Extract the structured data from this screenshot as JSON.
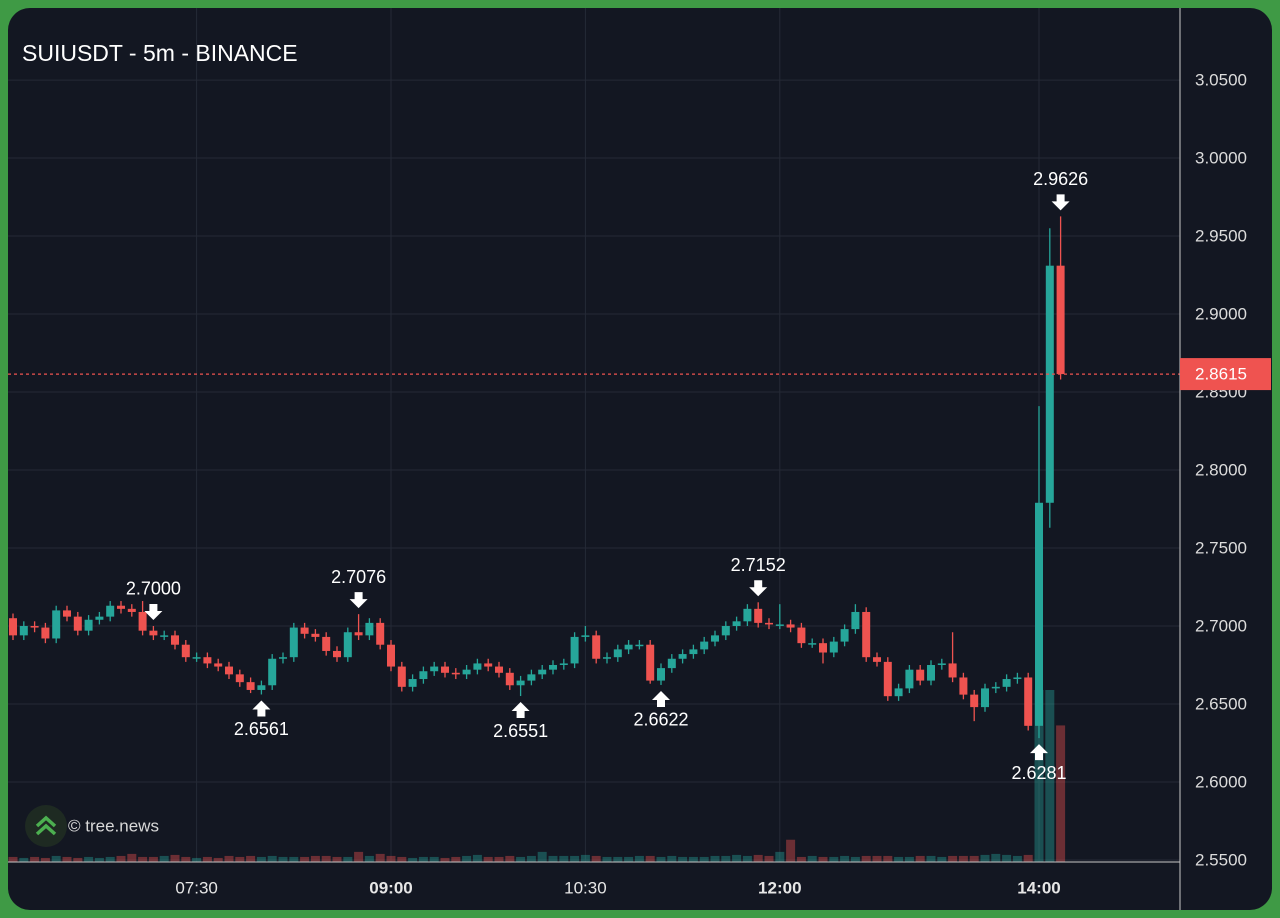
{
  "chart_data": {
    "type": "candlestick",
    "title": "SUIUSDT - 5m - BINANCE",
    "watermark": "© tree.news",
    "up_color": "#26a69a",
    "down_color": "#ef5350",
    "grid": true,
    "categories": [
      null,
      null,
      null,
      null,
      null,
      null,
      null,
      null,
      null,
      null,
      null,
      null,
      null,
      null,
      null,
      null,
      null,
      "07:30",
      null,
      null,
      null,
      null,
      null,
      null,
      null,
      null,
      null,
      null,
      null,
      null,
      null,
      null,
      null,
      null,
      null,
      "09:00",
      null,
      null,
      null,
      null,
      null,
      null,
      null,
      null,
      null,
      null,
      null,
      null,
      null,
      null,
      null,
      null,
      null,
      "10:30",
      null,
      null,
      null,
      null,
      null,
      null,
      null,
      null,
      null,
      null,
      null,
      null,
      null,
      null,
      null,
      null,
      null,
      "12:00",
      null,
      null,
      null,
      null,
      null,
      null,
      null,
      null,
      null,
      null,
      null,
      null,
      null,
      null,
      null,
      null,
      null,
      null,
      null,
      null,
      null,
      null,
      null,
      "14:00",
      null,
      null
    ],
    "open": [
      2.705,
      2.694,
      2.7,
      2.699,
      2.692,
      2.71,
      2.706,
      2.697,
      2.704,
      2.706,
      2.713,
      2.711,
      2.709,
      2.697,
      2.694,
      2.694,
      2.688,
      2.68,
      2.68,
      2.676,
      2.674,
      2.669,
      2.664,
      2.659,
      2.662,
      2.679,
      2.68,
      2.699,
      2.695,
      2.693,
      2.684,
      2.68,
      2.696,
      2.694,
      2.702,
      2.688,
      2.674,
      2.661,
      2.666,
      2.671,
      2.674,
      2.67,
      2.669,
      2.672,
      2.676,
      2.674,
      2.67,
      2.662,
      2.665,
      2.669,
      2.672,
      2.675,
      2.676,
      2.693,
      2.694,
      2.679,
      2.68,
      2.685,
      2.688,
      2.688,
      2.665,
      2.673,
      2.679,
      2.682,
      2.685,
      2.69,
      2.694,
      2.7,
      2.703,
      2.711,
      2.702,
      2.701,
      2.701,
      2.699,
      2.689,
      2.689,
      2.683,
      2.69,
      2.698,
      2.709,
      2.68,
      2.677,
      2.655,
      2.66,
      2.672,
      2.665,
      2.675,
      2.676,
      2.667,
      2.656,
      2.648,
      2.66,
      2.661,
      2.666,
      2.667,
      2.636,
      2.779,
      2.931
    ],
    "high": [
      2.708,
      2.703,
      2.703,
      2.702,
      2.713,
      2.713,
      2.709,
      2.707,
      2.709,
      2.716,
      2.716,
      2.714,
      2.716,
      2.7,
      2.697,
      2.697,
      2.691,
      2.683,
      2.683,
      2.679,
      2.677,
      2.672,
      2.667,
      2.665,
      2.682,
      2.683,
      2.702,
      2.702,
      2.698,
      2.696,
      2.687,
      2.699,
      2.7076,
      2.705,
      2.705,
      2.691,
      2.677,
      2.669,
      2.674,
      2.677,
      2.677,
      2.673,
      2.675,
      2.679,
      2.679,
      2.677,
      2.673,
      2.668,
      2.672,
      2.675,
      2.678,
      2.679,
      2.696,
      2.7,
      2.697,
      2.683,
      2.688,
      2.691,
      2.691,
      2.691,
      2.676,
      2.682,
      2.685,
      2.688,
      2.693,
      2.697,
      2.703,
      2.706,
      2.714,
      2.7152,
      2.705,
      2.714,
      2.704,
      2.702,
      2.692,
      2.692,
      2.693,
      2.701,
      2.714,
      2.712,
      2.683,
      2.68,
      2.663,
      2.675,
      2.675,
      2.678,
      2.679,
      2.696,
      2.67,
      2.659,
      2.663,
      2.664,
      2.669,
      2.67,
      2.67,
      2.841,
      2.955,
      2.9626
    ],
    "low": [
      2.691,
      2.691,
      2.696,
      2.689,
      2.689,
      2.703,
      2.694,
      2.694,
      2.701,
      2.703,
      2.708,
      2.706,
      2.694,
      2.691,
      2.691,
      2.685,
      2.677,
      2.677,
      2.673,
      2.671,
      2.666,
      2.661,
      2.657,
      2.6561,
      2.659,
      2.676,
      2.677,
      2.692,
      2.69,
      2.681,
      2.677,
      2.677,
      2.691,
      2.691,
      2.685,
      2.671,
      2.658,
      2.658,
      2.663,
      2.668,
      2.667,
      2.666,
      2.666,
      2.669,
      2.671,
      2.667,
      2.659,
      2.6551,
      2.662,
      2.666,
      2.669,
      2.672,
      2.673,
      2.69,
      2.676,
      2.676,
      2.677,
      2.682,
      2.685,
      2.663,
      2.6622,
      2.67,
      2.676,
      2.679,
      2.682,
      2.687,
      2.691,
      2.697,
      2.7,
      2.699,
      2.698,
      2.698,
      2.696,
      2.686,
      2.686,
      2.676,
      2.68,
      2.687,
      2.695,
      2.677,
      2.674,
      2.652,
      2.652,
      2.657,
      2.662,
      2.662,
      2.672,
      2.664,
      2.653,
      2.639,
      2.645,
      2.657,
      2.658,
      2.663,
      2.633,
      2.6281,
      2.763,
      2.858
    ],
    "close": [
      2.694,
      2.7,
      2.699,
      2.692,
      2.71,
      2.706,
      2.697,
      2.704,
      2.706,
      2.713,
      2.711,
      2.709,
      2.697,
      2.694,
      2.694,
      2.688,
      2.68,
      2.68,
      2.676,
      2.674,
      2.669,
      2.664,
      2.659,
      2.662,
      2.679,
      2.68,
      2.699,
      2.695,
      2.693,
      2.684,
      2.68,
      2.696,
      2.694,
      2.702,
      2.688,
      2.674,
      2.661,
      2.666,
      2.671,
      2.674,
      2.67,
      2.669,
      2.672,
      2.676,
      2.674,
      2.67,
      2.662,
      2.665,
      2.669,
      2.672,
      2.675,
      2.676,
      2.693,
      2.694,
      2.679,
      2.68,
      2.685,
      2.688,
      2.688,
      2.665,
      2.673,
      2.679,
      2.682,
      2.685,
      2.69,
      2.694,
      2.7,
      2.703,
      2.711,
      2.702,
      2.701,
      2.701,
      2.699,
      2.689,
      2.689,
      2.683,
      2.69,
      2.698,
      2.709,
      2.68,
      2.677,
      2.655,
      2.66,
      2.672,
      2.665,
      2.675,
      2.676,
      2.667,
      2.656,
      2.648,
      2.66,
      2.661,
      2.666,
      2.667,
      2.636,
      2.779,
      2.931,
      2.8615
    ],
    "volume": [
      5,
      4,
      5,
      4,
      6,
      5,
      4,
      5,
      4,
      5,
      6,
      8,
      5,
      5,
      6,
      7,
      5,
      4,
      5,
      4,
      6,
      5,
      6,
      5,
      6,
      5,
      5,
      5,
      6,
      6,
      5,
      5,
      10,
      6,
      8,
      6,
      5,
      4,
      5,
      5,
      4,
      5,
      6,
      7,
      5,
      5,
      6,
      5,
      6,
      10,
      6,
      6,
      6,
      7,
      6,
      5,
      5,
      5,
      6,
      6,
      5,
      6,
      5,
      5,
      5,
      6,
      6,
      7,
      6,
      7,
      6,
      10,
      22,
      5,
      6,
      5,
      5,
      6,
      5,
      6,
      6,
      6,
      5,
      5,
      6,
      6,
      5,
      6,
      6,
      6,
      7,
      8,
      7,
      6,
      7,
      170,
      170,
      135
    ],
    "ylim": [
      2.5487,
      3.0962
    ],
    "yticks": [
      {
        "value": 2.55,
        "label": "2.5500"
      },
      {
        "value": 2.6,
        "label": "2.6000"
      },
      {
        "value": 2.65,
        "label": "2.6500"
      },
      {
        "value": 2.7,
        "label": "2.7000"
      },
      {
        "value": 2.75,
        "label": "2.7500"
      },
      {
        "value": 2.8,
        "label": "2.8000"
      },
      {
        "value": 2.85,
        "label": "2.8500"
      },
      {
        "value": 2.9,
        "label": "2.9000"
      },
      {
        "value": 2.95,
        "label": "2.9500"
      },
      {
        "value": 3,
        "label": "3.0000"
      },
      {
        "value": 3.05,
        "label": "3.0500"
      }
    ],
    "extremes": [
      2.6561,
      2.7076,
      2.6551,
      {
        "value": 2.7,
        "label": "2.7000"
      },
      2.6622,
      2.7152,
      2.6281,
      2.9626
    ]
  }
}
